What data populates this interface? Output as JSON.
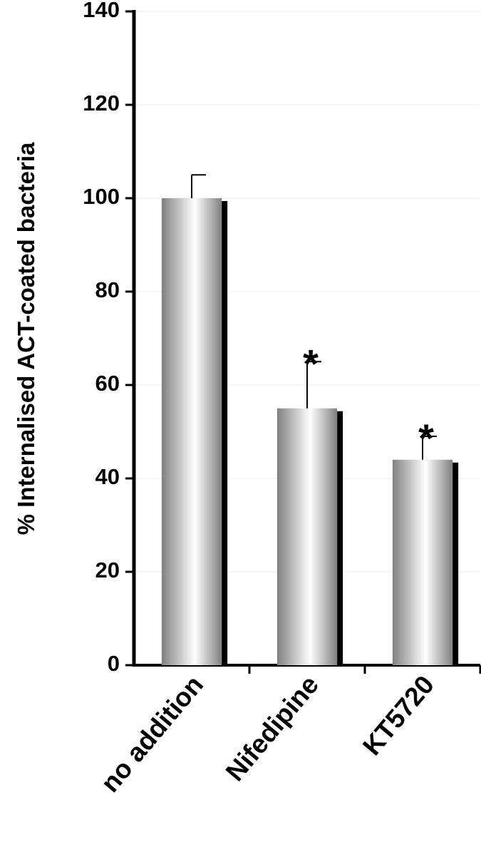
{
  "chart_data": {
    "type": "bar",
    "y_label": "% Internalised ACT-coated bacteria",
    "categories": [
      "no addition",
      "Nifedipine",
      "KT5720"
    ],
    "values": [
      100,
      55,
      44
    ],
    "errors": [
      5,
      10,
      5
    ],
    "significance": [
      null,
      "*",
      "*"
    ],
    "color": "#808080",
    "ylim": [
      0,
      140
    ],
    "yticks": [
      0,
      20,
      40,
      60,
      80,
      100,
      120,
      140
    ],
    "grid": true
  }
}
